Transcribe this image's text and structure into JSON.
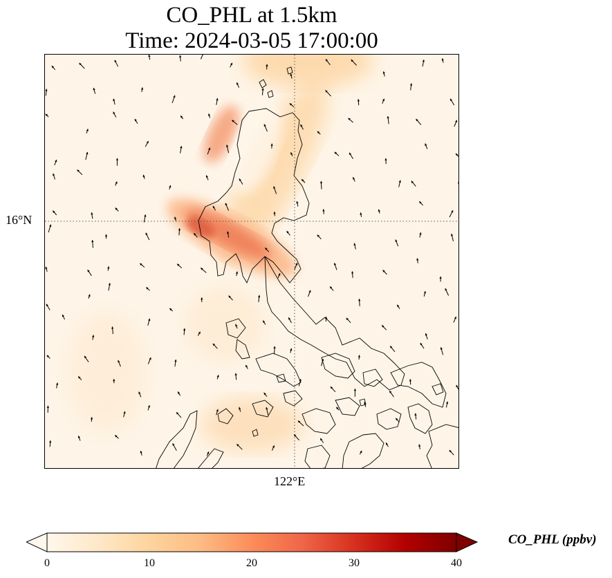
{
  "title": {
    "line1": "CO_PHL at 1.5km",
    "line2": "Time: 2024-03-05 17:00:00"
  },
  "map": {
    "variable": "CO_PHL",
    "level": "1.5km",
    "lat_label": "16°N",
    "lon_label": "122°E",
    "features": [
      "coastlines",
      "wind-vectors",
      "gridlines-dotted"
    ]
  },
  "colorbar": {
    "label": "CO_PHL (ppbv)",
    "ticks": [
      "0",
      "10",
      "20",
      "30",
      "40"
    ],
    "min": 0,
    "max": 40,
    "colormap": "OrRd",
    "colors": [
      "#fff7ec",
      "#fee8c8",
      "#fdd49e",
      "#fdbb84",
      "#fc8d59",
      "#ef6548",
      "#d7301f",
      "#b30000",
      "#7f0000"
    ]
  }
}
